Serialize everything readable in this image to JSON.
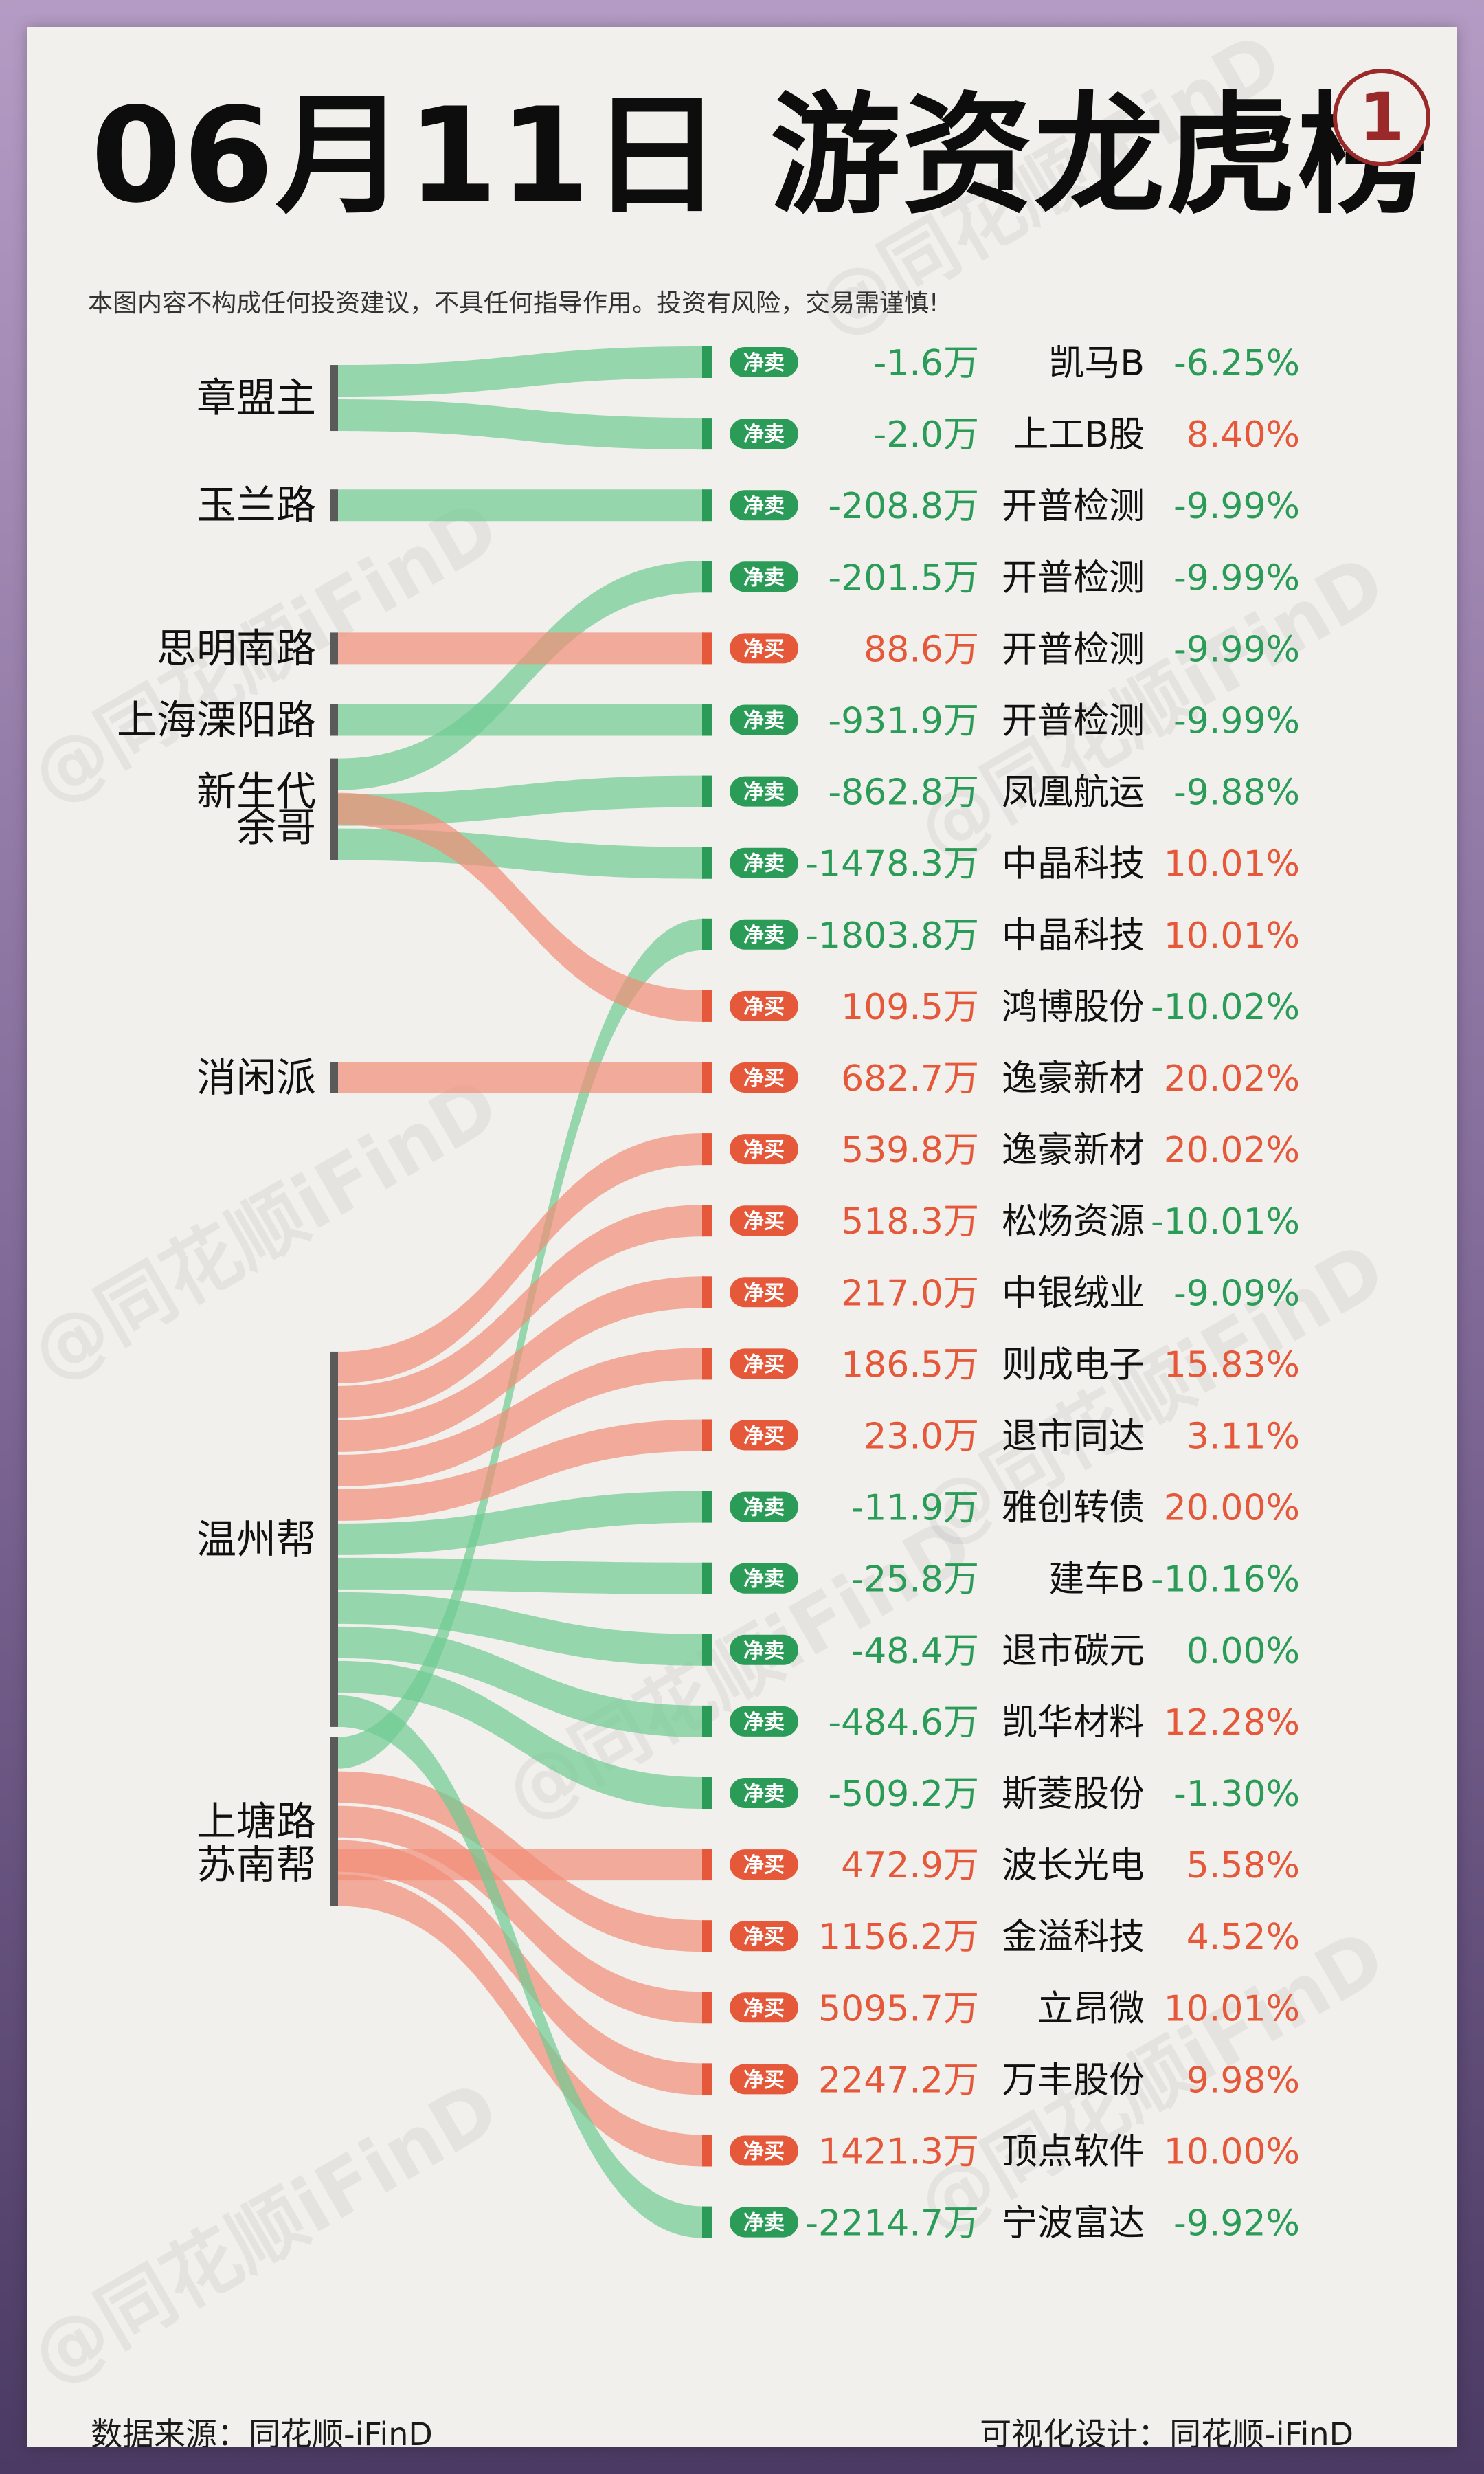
{
  "title": "06月11日 游资龙虎榜",
  "badge": "1",
  "disclaimer": "本图内容不构成任何投资建议，不具任何指导作用。投资有风险，交易需谨慎!",
  "watermark": "@同花顺iFinD",
  "footer": {
    "source": "数据来源：同花顺-iFinD",
    "design": "可视化设计：同花顺-iFinD"
  },
  "colors": {
    "sell_green": "#2a9c57",
    "sell_flow": "#6dcb92",
    "buy_red": "#e5583a",
    "buy_flow": "#f28d78",
    "bar": "#5a5a5a"
  },
  "chart_data": {
    "type": "sankey",
    "groups": [
      "章盟主",
      "玉兰路",
      "余哥",
      "新生代",
      "消闲派",
      "温州帮",
      "苏南帮",
      "思明南路",
      "上塘路",
      "上海溧阳路"
    ],
    "rows": [
      {
        "group": "章盟主",
        "action": "净卖",
        "amount": "-1.6万",
        "stock": "凯马B",
        "change": "-6.25%"
      },
      {
        "group": "章盟主",
        "action": "净卖",
        "amount": "-2.0万",
        "stock": "上工B股",
        "change": "8.40%"
      },
      {
        "group": "玉兰路",
        "action": "净卖",
        "amount": "-208.8万",
        "stock": "开普检测",
        "change": "-9.99%"
      },
      {
        "group": "新生代",
        "action": "净卖",
        "amount": "-201.5万",
        "stock": "开普检测",
        "change": "-9.99%"
      },
      {
        "group": "思明南路",
        "action": "净买",
        "amount": "88.6万",
        "stock": "开普检测",
        "change": "-9.99%"
      },
      {
        "group": "上海溧阳路",
        "action": "净卖",
        "amount": "-931.9万",
        "stock": "开普检测",
        "change": "-9.99%"
      },
      {
        "group": "余哥",
        "action": "净卖",
        "amount": "-862.8万",
        "stock": "凤凰航运",
        "change": "-9.88%"
      },
      {
        "group": "余哥",
        "action": "净卖",
        "amount": "-1478.3万",
        "stock": "中晶科技",
        "change": "10.01%"
      },
      {
        "group": "上塘路",
        "action": "净卖",
        "amount": "-1803.8万",
        "stock": "中晶科技",
        "change": "10.01%"
      },
      {
        "group": "新生代",
        "action": "净买",
        "amount": "109.5万",
        "stock": "鸿博股份",
        "change": "-10.02%"
      },
      {
        "group": "消闲派",
        "action": "净买",
        "amount": "682.7万",
        "stock": "逸豪新材",
        "change": "20.02%"
      },
      {
        "group": "温州帮",
        "action": "净买",
        "amount": "539.8万",
        "stock": "逸豪新材",
        "change": "20.02%"
      },
      {
        "group": "温州帮",
        "action": "净买",
        "amount": "518.3万",
        "stock": "松炀资源",
        "change": "-10.01%"
      },
      {
        "group": "温州帮",
        "action": "净买",
        "amount": "217.0万",
        "stock": "中银绒业",
        "change": "-9.09%"
      },
      {
        "group": "温州帮",
        "action": "净买",
        "amount": "186.5万",
        "stock": "则成电子",
        "change": "15.83%"
      },
      {
        "group": "温州帮",
        "action": "净买",
        "amount": "23.0万",
        "stock": "退市同达",
        "change": "3.11%"
      },
      {
        "group": "温州帮",
        "action": "净卖",
        "amount": "-11.9万",
        "stock": "雅创转债",
        "change": "20.00%"
      },
      {
        "group": "温州帮",
        "action": "净卖",
        "amount": "-25.8万",
        "stock": "建车B",
        "change": "-10.16%"
      },
      {
        "group": "温州帮",
        "action": "净卖",
        "amount": "-48.4万",
        "stock": "退市碳元",
        "change": "0.00%"
      },
      {
        "group": "温州帮",
        "action": "净卖",
        "amount": "-484.6万",
        "stock": "凯华材料",
        "change": "12.28%"
      },
      {
        "group": "温州帮",
        "action": "净卖",
        "amount": "-509.2万",
        "stock": "斯菱股份",
        "change": "-1.30%"
      },
      {
        "group": "苏南帮",
        "action": "净买",
        "amount": "472.9万",
        "stock": "波长光电",
        "change": "5.58%"
      },
      {
        "group": "上塘路",
        "action": "净买",
        "amount": "1156.2万",
        "stock": "金溢科技",
        "change": "4.52%"
      },
      {
        "group": "上塘路",
        "action": "净买",
        "amount": "5095.7万",
        "stock": "立昂微",
        "change": "10.01%"
      },
      {
        "group": "上塘路",
        "action": "净买",
        "amount": "2247.2万",
        "stock": "万丰股份",
        "change": "9.98%"
      },
      {
        "group": "上塘路",
        "action": "净买",
        "amount": "1421.3万",
        "stock": "顶点软件",
        "change": "10.00%"
      },
      {
        "group": "温州帮",
        "action": "净卖",
        "amount": "-2214.7万",
        "stock": "宁波富达",
        "change": "-9.92%"
      }
    ]
  }
}
